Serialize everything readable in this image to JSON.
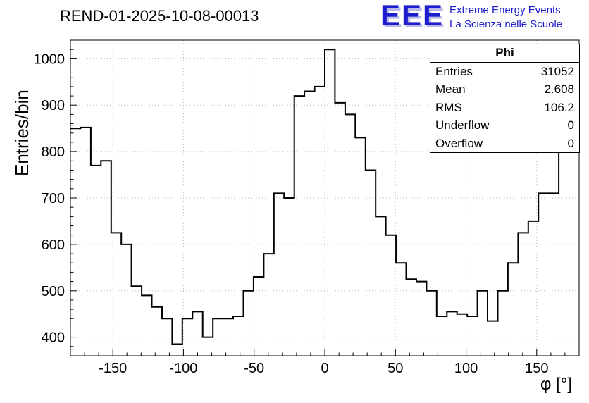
{
  "header": {
    "title": "REND-01-2025-10-08-00013",
    "logo": {
      "text": "EEE",
      "line1": "Extreme Energy Events",
      "line2": "La Scienza nelle Scuole",
      "color": "#1d1dce"
    }
  },
  "stats_box": {
    "title": "Phi",
    "rows": [
      {
        "label": "Entries",
        "value": "31052"
      },
      {
        "label": "Mean",
        "value": "2.608"
      },
      {
        "label": "RMS",
        "value": "106.2"
      },
      {
        "label": "Underflow",
        "value": "0"
      },
      {
        "label": "Overflow",
        "value": "0"
      }
    ]
  },
  "chart_data": {
    "type": "bar",
    "subtype": "step-histogram",
    "title": "REND-01-2025-10-08-00013",
    "xlabel": "φ [°]",
    "ylabel": "Entries/bin",
    "bins": {
      "start": -180,
      "width": 7.2,
      "count": 50
    },
    "values": [
      850,
      852,
      770,
      780,
      625,
      600,
      510,
      490,
      465,
      440,
      385,
      440,
      455,
      400,
      440,
      440,
      445,
      500,
      530,
      580,
      710,
      700,
      920,
      930,
      940,
      1020,
      905,
      880,
      830,
      760,
      660,
      620,
      560,
      525,
      520,
      500,
      445,
      455,
      450,
      445,
      500,
      435,
      500,
      560,
      625,
      650,
      710,
      710,
      805,
      845
    ],
    "xlim": [
      -180,
      180
    ],
    "ylim": [
      360,
      1040
    ],
    "x_major_ticks": [
      -150,
      -100,
      -50,
      0,
      50,
      100,
      150
    ],
    "x_minor_step": 10,
    "y_major_ticks": [
      400,
      500,
      600,
      700,
      800,
      900,
      1000
    ],
    "y_minor_step": 20,
    "grid": true,
    "legend_position": "none",
    "line_color": "#000000",
    "grid_color": "#bcbcbc",
    "frame_color": "#000000"
  }
}
